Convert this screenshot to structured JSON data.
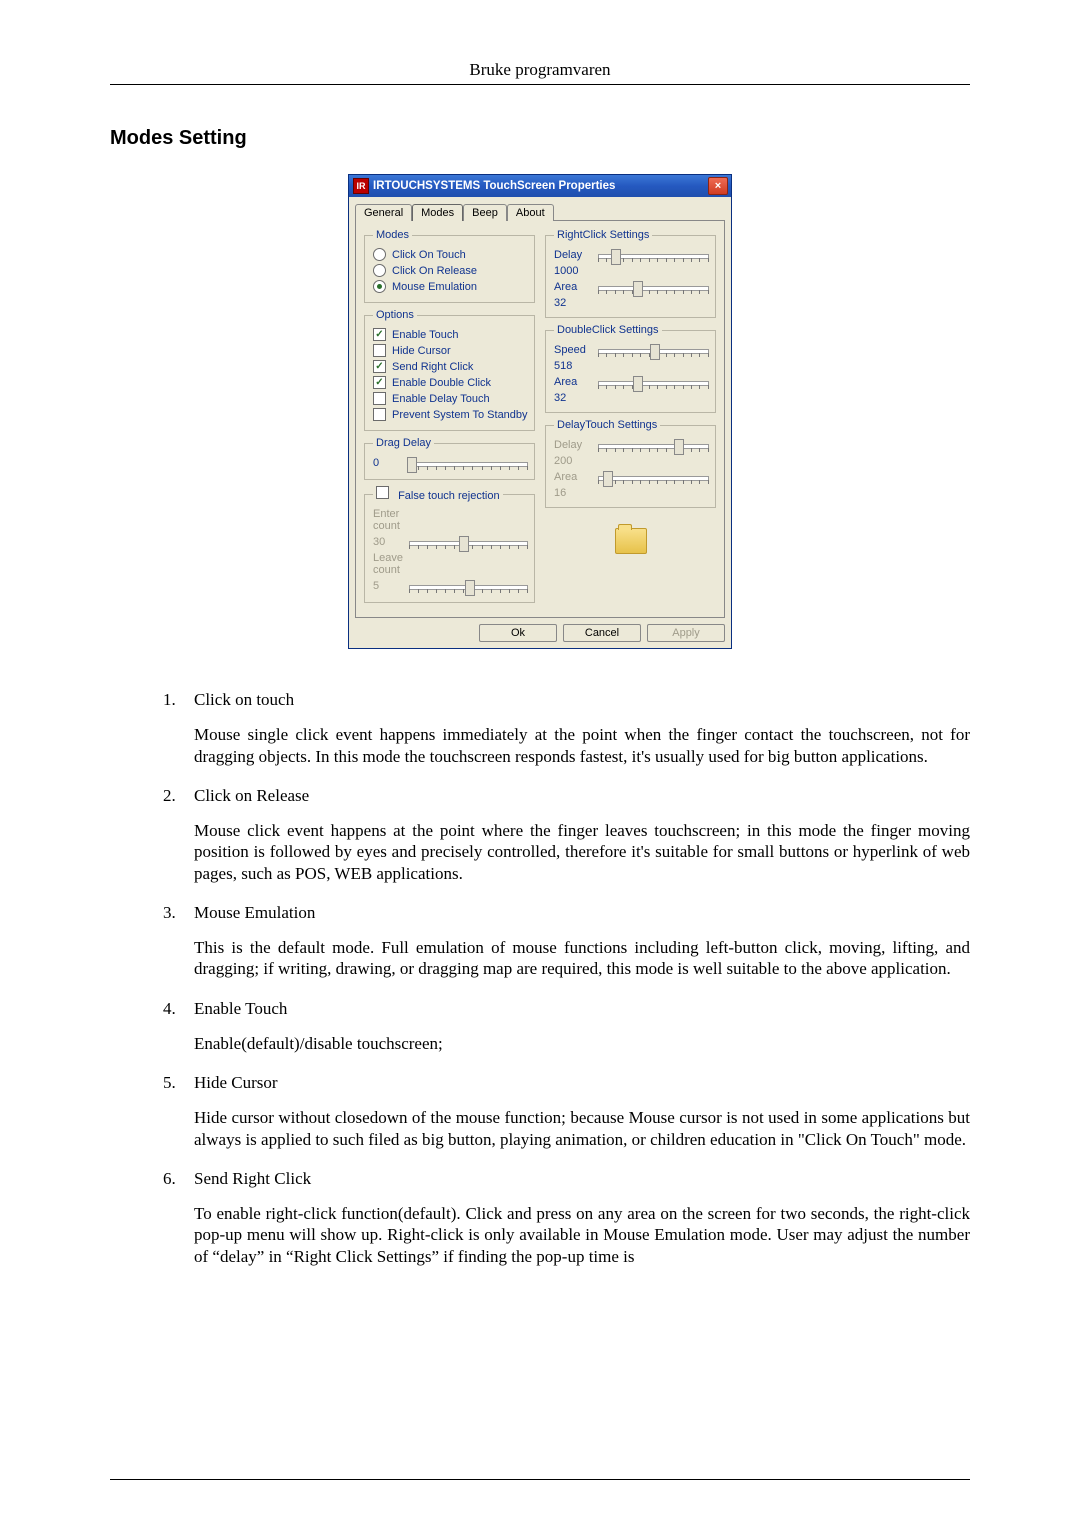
{
  "header": "Bruke programvaren",
  "section_title": "Modes Setting",
  "dialog": {
    "title": "IRTOUCHSYSTEMS TouchScreen Properties",
    "title_icon_text": "IR",
    "tabs": [
      "General",
      "Modes",
      "Beep",
      "About"
    ],
    "active_tab": 1,
    "modes_group": {
      "legend": "Modes",
      "options": [
        {
          "label": "Click On Touch",
          "selected": false
        },
        {
          "label": "Click On Release",
          "selected": false
        },
        {
          "label": "Mouse Emulation",
          "selected": true
        }
      ]
    },
    "options_group": {
      "legend": "Options",
      "items": [
        {
          "label": "Enable Touch",
          "checked": true
        },
        {
          "label": "Hide Cursor",
          "checked": false
        },
        {
          "label": "Send Right Click",
          "checked": true
        },
        {
          "label": "Enable Double Click",
          "checked": true
        },
        {
          "label": "Enable Delay Touch",
          "checked": false
        },
        {
          "label": "Prevent System To Standby",
          "checked": false
        }
      ]
    },
    "drag_delay": {
      "legend": "Drag Delay",
      "value": "0",
      "thumb_pct": 2
    },
    "false_touch": {
      "legend": "False touch rejection",
      "checked": false,
      "enter_label": "Enter count",
      "enter_value": "30",
      "enter_thumb_pct": 45,
      "leave_label": "Leave count",
      "leave_value": "5",
      "leave_thumb_pct": 50,
      "disabled": true
    },
    "rightclick": {
      "legend": "RightClick Settings",
      "delay_label": "Delay",
      "delay_value": "1000",
      "delay_thumb_pct": 15,
      "area_label": "Area",
      "area_value": "32",
      "area_thumb_pct": 35
    },
    "doubleclick": {
      "legend": "DoubleClick Settings",
      "speed_label": "Speed",
      "speed_value": "518",
      "speed_thumb_pct": 50,
      "area_label": "Area",
      "area_value": "32",
      "area_thumb_pct": 35
    },
    "delaytouch": {
      "legend": "DelayTouch Settings",
      "disabled": true,
      "delay_label": "Delay",
      "delay_value": "200",
      "delay_thumb_pct": 72,
      "area_label": "Area",
      "area_value": "16",
      "area_thumb_pct": 8
    },
    "buttons": {
      "ok": "Ok",
      "cancel": "Cancel",
      "apply": "Apply"
    }
  },
  "list": [
    {
      "term": "Click on touch",
      "body": "Mouse single click event happens immediately at the point when the finger contact the touchscreen, not for dragging objects. In this mode the touchscreen responds fastest, it's usually used for big button applications."
    },
    {
      "term": "Click on Release",
      "body": "Mouse click event happens at the point where the finger leaves touchscreen; in this mode the finger moving position is followed by eyes and precisely controlled, therefore it's suitable for small buttons or hyperlink of web pages, such as POS, WEB applications."
    },
    {
      "term": "Mouse Emulation",
      "body": "This is the default mode. Full emulation of mouse functions including left-button click, moving, lifting, and dragging; if writing, drawing, or dragging map are required, this mode is well suitable to the above application."
    },
    {
      "term": "Enable Touch",
      "body": "Enable(default)/disable touchscreen;"
    },
    {
      "term": "Hide Cursor",
      "body": "Hide cursor without closedown of the mouse function; because Mouse cursor is not used in some applications but always is applied to such filed as big button, playing animation, or children education in \"Click On Touch\" mode."
    },
    {
      "term": "Send Right Click",
      "body": "To enable right-click function(default). Click and press on any area on the screen for two seconds, the right-click pop-up menu will show up. Right-click is only available in Mouse Emulation mode. User may adjust the number of “delay” in “Right Click Settings” if finding the pop-up time is"
    }
  ]
}
